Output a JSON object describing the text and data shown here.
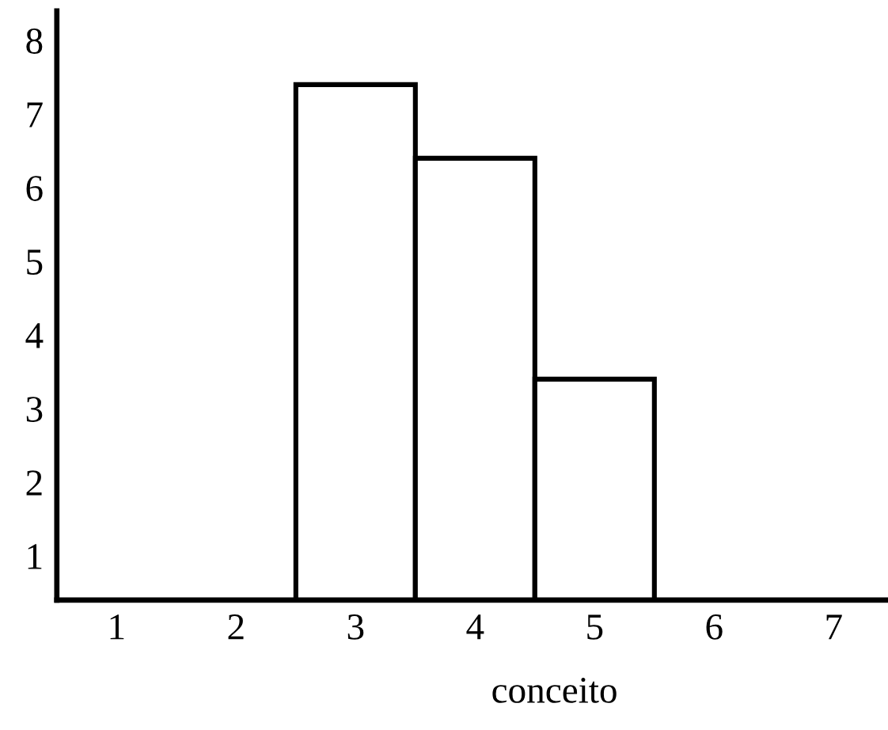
{
  "chart_data": {
    "type": "bar",
    "xlabel": "conceito",
    "categories": [
      "1",
      "2",
      "3",
      "4",
      "5",
      "6",
      "7"
    ],
    "values": [
      null,
      null,
      7.4,
      6.4,
      3.4,
      null,
      null
    ],
    "color": "#ffffff",
    "ylim": [
      0.4,
      8.4
    ],
    "yticks": [
      1,
      2,
      3,
      4,
      5,
      6,
      7,
      8
    ],
    "grid": false
  }
}
